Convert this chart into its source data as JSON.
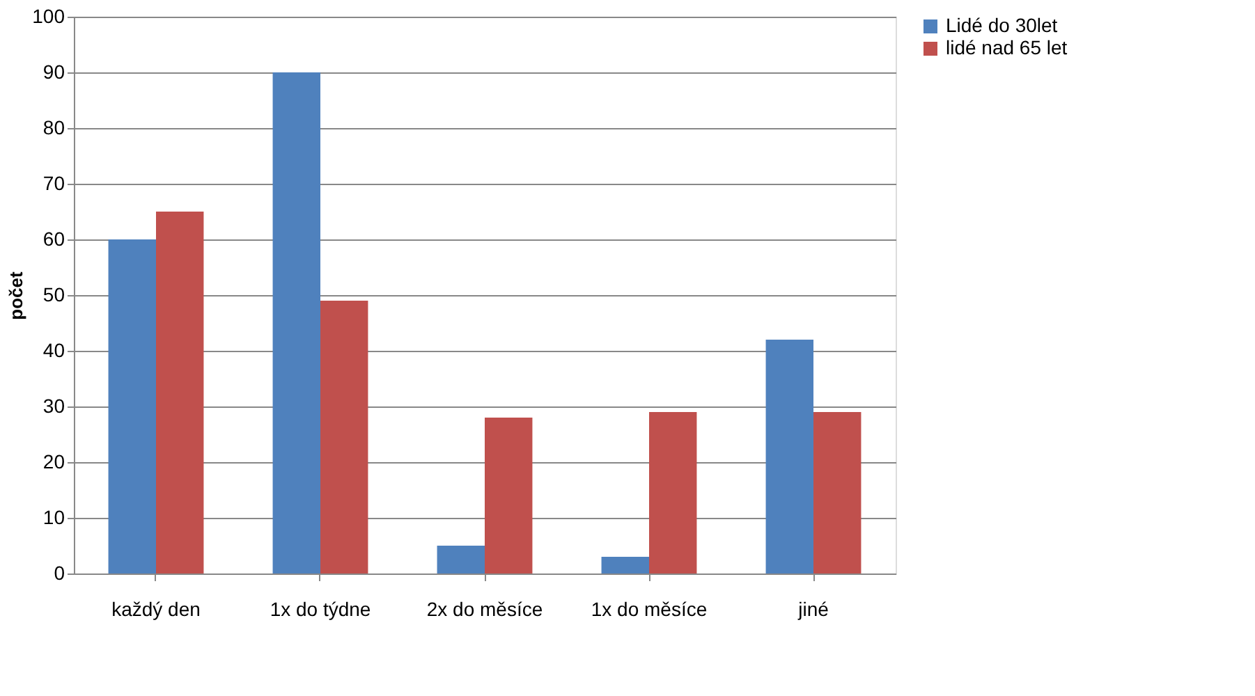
{
  "chart_data": {
    "type": "bar",
    "ylabel": "počet",
    "categories": [
      "každý den",
      "1x do týdne",
      "2x do měsíce",
      "1x do měsíce",
      "jiné"
    ],
    "series": [
      {
        "name": "Lidé do 30let",
        "color": "#4f81bd",
        "values": [
          60,
          90,
          5,
          3,
          42
        ]
      },
      {
        "name": "lidé nad 65 let",
        "color": "#c0504d",
        "values": [
          65,
          49,
          28,
          29,
          29
        ]
      }
    ],
    "ylim": [
      0,
      100
    ],
    "yticks": [
      0,
      10,
      20,
      30,
      40,
      50,
      60,
      70,
      80,
      90,
      100
    ],
    "grid": "y",
    "legend": "right"
  }
}
